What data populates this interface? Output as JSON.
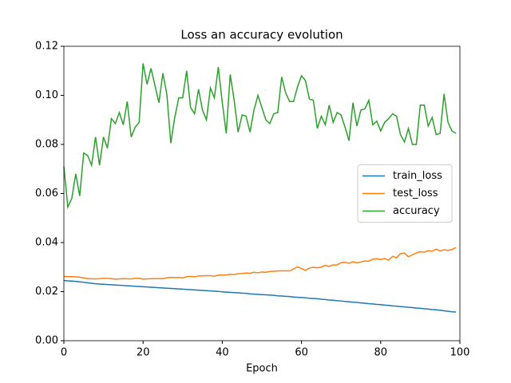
{
  "chart_data": {
    "type": "line",
    "title": "Loss an accuracy evolution",
    "x_label": "Epoch",
    "x": [
      0,
      1,
      2,
      3,
      4,
      5,
      6,
      7,
      8,
      9,
      10,
      11,
      12,
      13,
      14,
      15,
      16,
      17,
      18,
      19,
      20,
      21,
      22,
      23,
      24,
      25,
      26,
      27,
      28,
      29,
      30,
      31,
      32,
      33,
      34,
      35,
      36,
      37,
      38,
      39,
      40,
      41,
      42,
      43,
      44,
      45,
      46,
      47,
      48,
      49,
      50,
      51,
      52,
      53,
      54,
      55,
      56,
      57,
      58,
      59,
      60,
      61,
      62,
      63,
      64,
      65,
      66,
      67,
      68,
      69,
      70,
      71,
      72,
      73,
      74,
      75,
      76,
      77,
      78,
      79,
      80,
      81,
      82,
      83,
      84,
      85,
      86,
      87,
      88,
      89,
      90,
      91,
      92,
      93,
      94,
      95,
      96,
      97,
      98,
      99
    ],
    "series": [
      {
        "name": "train_loss",
        "color": "#1f77b4",
        "values": [
          0.0245,
          0.0244,
          0.0243,
          0.0242,
          0.024,
          0.0238,
          0.0236,
          0.0234,
          0.0232,
          0.0231,
          0.023,
          0.0229,
          0.0228,
          0.0227,
          0.0226,
          0.0225,
          0.0224,
          0.0223,
          0.0222,
          0.0221,
          0.022,
          0.0219,
          0.0218,
          0.0217,
          0.0216,
          0.0215,
          0.0214,
          0.0213,
          0.0212,
          0.0211,
          0.021,
          0.0209,
          0.0208,
          0.0207,
          0.0206,
          0.0205,
          0.0204,
          0.0203,
          0.0202,
          0.0201,
          0.0199,
          0.0198,
          0.0197,
          0.0196,
          0.0195,
          0.0194,
          0.0193,
          0.0191,
          0.019,
          0.0189,
          0.0188,
          0.0187,
          0.0186,
          0.0185,
          0.0183,
          0.0182,
          0.0181,
          0.018,
          0.0178,
          0.0177,
          0.0176,
          0.0175,
          0.0173,
          0.0172,
          0.0171,
          0.0169,
          0.0168,
          0.0166,
          0.0165,
          0.0163,
          0.0162,
          0.016,
          0.0159,
          0.0157,
          0.0156,
          0.0154,
          0.0153,
          0.0151,
          0.015,
          0.0148,
          0.0147,
          0.0145,
          0.0144,
          0.0142,
          0.0141,
          0.0139,
          0.0138,
          0.0136,
          0.0135,
          0.0133,
          0.0132,
          0.013,
          0.0129,
          0.0127,
          0.0126,
          0.0124,
          0.0122,
          0.012,
          0.0118,
          0.0117
        ]
      },
      {
        "name": "test_loss",
        "color": "#ff7f0e",
        "values": [
          0.0262,
          0.0261,
          0.0261,
          0.026,
          0.0259,
          0.0256,
          0.0253,
          0.0252,
          0.0252,
          0.0253,
          0.0254,
          0.0254,
          0.0253,
          0.0251,
          0.0252,
          0.0253,
          0.0252,
          0.0252,
          0.0254,
          0.0255,
          0.0251,
          0.0252,
          0.0253,
          0.0253,
          0.0253,
          0.0253,
          0.0256,
          0.0258,
          0.0257,
          0.0258,
          0.0256,
          0.0261,
          0.0262,
          0.026,
          0.0264,
          0.0264,
          0.0265,
          0.0265,
          0.0263,
          0.0267,
          0.0268,
          0.0268,
          0.0271,
          0.027,
          0.0273,
          0.0274,
          0.0276,
          0.0275,
          0.0279,
          0.0277,
          0.028,
          0.0279,
          0.0282,
          0.0283,
          0.0284,
          0.0285,
          0.0285,
          0.0284,
          0.0293,
          0.0301,
          0.0294,
          0.0287,
          0.0296,
          0.0299,
          0.0297,
          0.03,
          0.0307,
          0.0303,
          0.0309,
          0.0309,
          0.0318,
          0.0319,
          0.0316,
          0.0322,
          0.0317,
          0.0321,
          0.0325,
          0.0324,
          0.0332,
          0.0334,
          0.0331,
          0.0335,
          0.0328,
          0.0344,
          0.0338,
          0.0355,
          0.0357,
          0.0342,
          0.035,
          0.0358,
          0.0362,
          0.0361,
          0.0367,
          0.0365,
          0.0373,
          0.0366,
          0.0371,
          0.0368,
          0.0372,
          0.038
        ]
      },
      {
        "name": "accuracy",
        "color": "#2ca02c",
        "values": [
          0.071,
          0.0545,
          0.058,
          0.068,
          0.059,
          0.0765,
          0.0755,
          0.0715,
          0.083,
          0.0715,
          0.083,
          0.0785,
          0.0905,
          0.0885,
          0.093,
          0.088,
          0.0975,
          0.083,
          0.087,
          0.089,
          0.113,
          0.1045,
          0.111,
          0.104,
          0.097,
          0.109,
          0.1005,
          0.0805,
          0.091,
          0.099,
          0.099,
          0.11,
          0.095,
          0.0925,
          0.1025,
          0.094,
          0.09,
          0.103,
          0.099,
          0.1115,
          0.097,
          0.0845,
          0.1085,
          0.098,
          0.085,
          0.092,
          0.0915,
          0.085,
          0.094,
          0.1,
          0.095,
          0.09,
          0.0885,
          0.0925,
          0.093,
          0.1075,
          0.101,
          0.0975,
          0.0975,
          0.1035,
          0.108,
          0.106,
          0.0985,
          0.098,
          0.0865,
          0.0915,
          0.088,
          0.096,
          0.089,
          0.093,
          0.092,
          0.087,
          0.0815,
          0.097,
          0.0875,
          0.094,
          0.0945,
          0.098,
          0.088,
          0.0895,
          0.0855,
          0.089,
          0.0905,
          0.0925,
          0.0915,
          0.084,
          0.081,
          0.0865,
          0.08,
          0.08,
          0.096,
          0.096,
          0.0875,
          0.091,
          0.084,
          0.0845,
          0.1005,
          0.089,
          0.0855,
          0.0845
        ]
      }
    ],
    "xlim": [
      0,
      100
    ],
    "xticks": [
      0,
      20,
      40,
      60,
      80,
      100
    ],
    "ylim": [
      0,
      0.12
    ],
    "yticks": [
      {
        "value": 0,
        "label": "0.00"
      },
      {
        "value": 0.02,
        "label": "0.02"
      },
      {
        "value": 0.04,
        "label": "0.04"
      },
      {
        "value": 0.06,
        "label": "0.06"
      },
      {
        "value": 0.08,
        "label": "0.08"
      },
      {
        "value": 0.1,
        "label": "0.10"
      },
      {
        "value": 0.12,
        "label": "0.12"
      }
    ],
    "legend": "center right"
  }
}
